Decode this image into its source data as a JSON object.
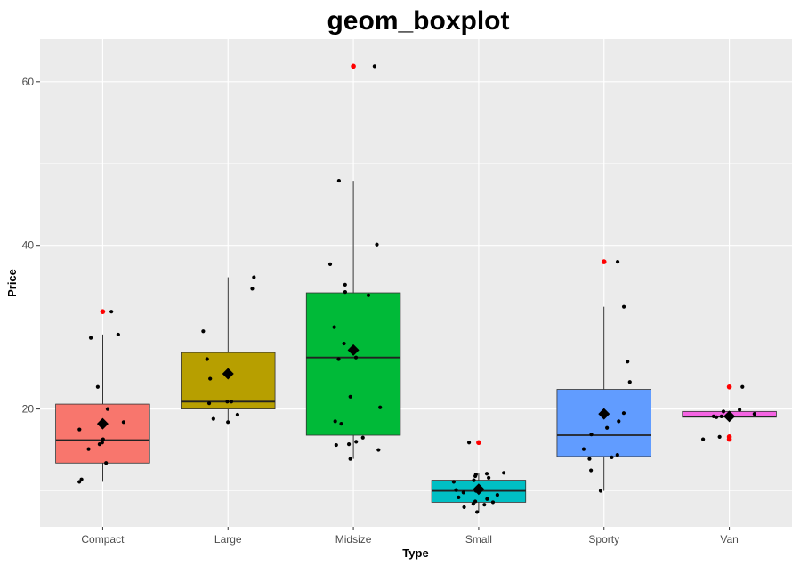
{
  "chart_data": {
    "type": "boxplot",
    "title": "geom_boxplot",
    "xlabel": "Type",
    "ylabel": "Price",
    "categories": [
      "Compact",
      "Large",
      "Midsize",
      "Small",
      "Sporty",
      "Van"
    ],
    "ylim": [
      5.6,
      65.2
    ],
    "yticks": [
      20,
      40,
      60
    ],
    "grid": true,
    "legend": "none",
    "boxes": [
      {
        "category": "Compact",
        "lower_whisker": 11.1,
        "q1": 13.4,
        "median": 16.2,
        "q3": 20.6,
        "upper_whisker": 29.1,
        "mean": 18.2,
        "outliers": [
          31.9
        ],
        "color": "#F8766D"
      },
      {
        "category": "Large",
        "lower_whisker": 18.4,
        "q1": 20.0,
        "median": 20.9,
        "q3": 26.9,
        "upper_whisker": 36.1,
        "mean": 24.3,
        "outliers": [],
        "color": "#B79F00"
      },
      {
        "category": "Midsize",
        "lower_whisker": 13.9,
        "q1": 16.8,
        "median": 26.3,
        "q3": 34.2,
        "upper_whisker": 47.9,
        "mean": 27.2,
        "outliers": [
          61.9
        ],
        "color": "#00BA38"
      },
      {
        "category": "Small",
        "lower_whisker": 7.4,
        "q1": 8.6,
        "median": 10.0,
        "q3": 11.3,
        "upper_whisker": 12.2,
        "mean": 10.2,
        "outliers": [
          15.9
        ],
        "color": "#00BFC4"
      },
      {
        "category": "Sporty",
        "lower_whisker": 10.0,
        "q1": 14.2,
        "median": 16.8,
        "q3": 22.4,
        "upper_whisker": 32.5,
        "mean": 19.4,
        "outliers": [
          38.0
        ],
        "color": "#619CFF"
      },
      {
        "category": "Van",
        "lower_whisker": 19.0,
        "q1": 19.0,
        "median": 19.1,
        "q3": 19.7,
        "upper_whisker": 19.7,
        "mean": 19.1,
        "outliers": [
          22.7,
          16.3,
          16.6
        ],
        "color": "#F564E3"
      }
    ],
    "jitter_points": [
      {
        "category": "Compact",
        "y": [
          15.9,
          13.4,
          11.4,
          15.1,
          15.7,
          16.3,
          17.5,
          18.4,
          20.0,
          22.7,
          28.7,
          29.1,
          31.9,
          11.1
        ]
      },
      {
        "category": "Large",
        "y": [
          18.4,
          18.8,
          19.3,
          20.7,
          20.9,
          20.9,
          23.7,
          29.5,
          34.7,
          36.1,
          26.1
        ]
      },
      {
        "category": "Midsize",
        "y": [
          13.9,
          15.0,
          15.6,
          15.7,
          16.0,
          16.5,
          18.2,
          18.5,
          20.2,
          21.5,
          26.1,
          26.3,
          28.0,
          30.0,
          33.9,
          34.3,
          35.2,
          37.7,
          40.1,
          47.9,
          61.9
        ]
      },
      {
        "category": "Small",
        "y": [
          7.4,
          8.0,
          8.3,
          8.4,
          8.6,
          9.0,
          9.2,
          9.8,
          10.0,
          10.1,
          11.1,
          11.3,
          11.6,
          12.1,
          12.2,
          15.9,
          8.7,
          10.4,
          11.8,
          9.5,
          12.0
        ]
      },
      {
        "category": "Sporty",
        "y": [
          10.0,
          12.5,
          13.9,
          14.4,
          15.1,
          16.9,
          18.5,
          19.5,
          23.3,
          25.8,
          32.5,
          38.0,
          14.1,
          17.7
        ]
      },
      {
        "category": "Van",
        "y": [
          16.3,
          16.6,
          19.1,
          19.1,
          19.7,
          19.9,
          22.7,
          19.0,
          19.4
        ]
      }
    ],
    "outlier_color": "#FF0000",
    "mean_marker": "diamond"
  }
}
